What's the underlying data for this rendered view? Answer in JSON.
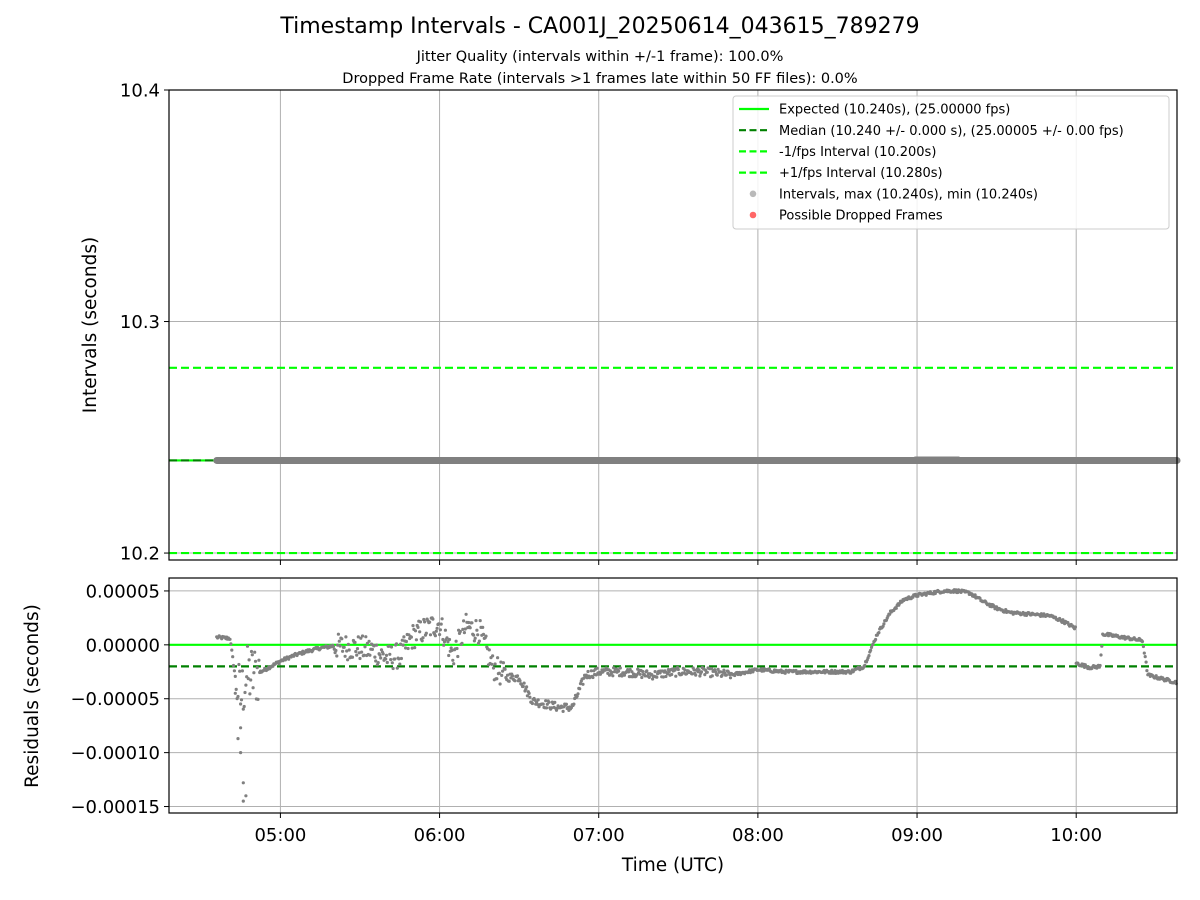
{
  "figure": {
    "title": "Timestamp Intervals - CA001J_20250614_043615_789279",
    "subtitle_1": "Jitter Quality (intervals within +/-1 frame): 100.0%",
    "subtitle_2": "Dropped Frame Rate (intervals >1 frames late within 50 FF files): 0.0%"
  },
  "colors": {
    "expected": "#00ff00",
    "median": "#008000",
    "interval_lines": "#00ff00",
    "points": "#808080",
    "dropped": "#ff0000",
    "grid": "#b0b0b0"
  },
  "chart_data": [
    {
      "type": "scatter",
      "panel": "intervals",
      "xlabel": "",
      "ylabel": "Intervals (seconds)",
      "x_range": [
        "04:18",
        "10:38"
      ],
      "ylim": [
        10.197,
        10.4
      ],
      "y_ticks": [
        "10.2",
        "10.3",
        "10.4"
      ],
      "grid": true,
      "legend_position": "top-right",
      "legend": [
        {
          "label": "Expected (10.240s), (25.00000 fps)",
          "style": "solid-line",
          "color": "#00ff00"
        },
        {
          "label": "Median (10.240 +/- 0.000 s), (25.00005 +/- 0.00 fps)",
          "style": "dashed-line",
          "color": "#008000"
        },
        {
          "label": "-1/fps Interval (10.200s)",
          "style": "dashed-line",
          "color": "#00ff00"
        },
        {
          "label": "+1/fps Interval (10.280s)",
          "style": "dashed-line",
          "color": "#00ff00"
        },
        {
          "label": "Intervals, max (10.240s), min (10.240s)",
          "style": "marker",
          "color": "#808080"
        },
        {
          "label": "Possible Dropped Frames",
          "style": "marker",
          "color": "#ff0000"
        }
      ],
      "reference_lines": [
        {
          "name": "expected",
          "y": 10.24,
          "style": "solid"
        },
        {
          "name": "median",
          "y": 10.24,
          "style": "dashed"
        },
        {
          "name": "minus_1_fps",
          "y": 10.2,
          "style": "dashed"
        },
        {
          "name": "plus_1_fps",
          "y": 10.28,
          "style": "dashed"
        }
      ],
      "series": [
        {
          "values_note": "intervals",
          "x_start": "04:36",
          "x_end": "10:38",
          "y": 10.24
        }
      ],
      "dropped_frames": []
    },
    {
      "type": "scatter",
      "panel": "residuals",
      "xlabel": "Time (UTC)",
      "ylabel": "Residuals (seconds)",
      "x_range": [
        "04:18",
        "10:38"
      ],
      "x_ticks": [
        "05:00",
        "06:00",
        "07:00",
        "08:00",
        "09:00",
        "10:00"
      ],
      "ylim": [
        -0.000156,
        6.2e-05
      ],
      "y_ticks": [
        "0.00005",
        "0.00000",
        "−0.00005",
        "−0.00010",
        "−0.00015"
      ],
      "grid": true,
      "reference_lines": [
        {
          "name": "expected",
          "y": 0.0,
          "style": "solid"
        },
        {
          "name": "median",
          "y": -2e-05,
          "style": "dashed"
        }
      ],
      "residual_trend": [
        [
          "04:36",
          7e-06
        ],
        [
          "04:41",
          6e-06
        ],
        [
          "04:43",
          -3e-05
        ],
        [
          "04:45",
          -5e-05
        ],
        [
          "04:47",
          -3e-05
        ],
        [
          "04:50",
          -2.8e-05
        ],
        [
          "04:55",
          -2.2e-05
        ],
        [
          "05:00",
          -1.5e-05
        ],
        [
          "05:05",
          -1e-05
        ],
        [
          "05:10",
          -6e-06
        ],
        [
          "05:15",
          -3e-06
        ],
        [
          "05:20",
          -1e-06
        ],
        [
          "05:25",
          -2e-06
        ],
        [
          "05:30",
          -3e-06
        ],
        [
          "05:35",
          -5e-06
        ],
        [
          "05:40",
          -1.2e-05
        ],
        [
          "05:45",
          -1e-05
        ],
        [
          "05:50",
          8e-06
        ],
        [
          "05:55",
          1.5e-05
        ],
        [
          "06:00",
          2e-05
        ],
        [
          "06:05",
          -1e-05
        ],
        [
          "06:10",
          1.7e-05
        ],
        [
          "06:15",
          1.3e-05
        ],
        [
          "06:20",
          -2e-05
        ],
        [
          "06:25",
          -3e-05
        ],
        [
          "06:30",
          -3e-05
        ],
        [
          "06:35",
          -5.2e-05
        ],
        [
          "06:40",
          -5.5e-05
        ],
        [
          "06:45",
          -5.8e-05
        ],
        [
          "06:50",
          -5.8e-05
        ],
        [
          "06:55",
          -2.8e-05
        ],
        [
          "07:00",
          -2.5e-05
        ],
        [
          "07:10",
          -2.5e-05
        ],
        [
          "07:20",
          -2.8e-05
        ],
        [
          "07:30",
          -2.5e-05
        ],
        [
          "07:40",
          -2.5e-05
        ],
        [
          "07:50",
          -2.8e-05
        ],
        [
          "08:00",
          -2.3e-05
        ],
        [
          "08:10",
          -2.5e-05
        ],
        [
          "08:20",
          -2.5e-05
        ],
        [
          "08:30",
          -2.5e-05
        ],
        [
          "08:35",
          -2.5e-05
        ],
        [
          "08:40",
          -2e-05
        ],
        [
          "08:45",
          1e-05
        ],
        [
          "08:50",
          3e-05
        ],
        [
          "08:55",
          4.2e-05
        ],
        [
          "09:00",
          4.6e-05
        ],
        [
          "09:05",
          4.8e-05
        ],
        [
          "09:10",
          5e-05
        ],
        [
          "09:15",
          5e-05
        ],
        [
          "09:20",
          4.8e-05
        ],
        [
          "09:25",
          4e-05
        ],
        [
          "09:30",
          3.4e-05
        ],
        [
          "09:35",
          3e-05
        ],
        [
          "09:40",
          2.9e-05
        ],
        [
          "09:45",
          2.8e-05
        ],
        [
          "09:50",
          2.7e-05
        ],
        [
          "09:55",
          2.2e-05
        ],
        [
          "10:00",
          1.5e-05
        ],
        [
          "10:00",
          -1.7e-05
        ],
        [
          "10:05",
          -2.1e-05
        ],
        [
          "10:09",
          -2e-05
        ],
        [
          "10:10",
          1e-05
        ],
        [
          "10:20",
          6e-06
        ],
        [
          "10:25",
          4e-06
        ],
        [
          "10:27",
          -2.8e-05
        ],
        [
          "10:38",
          -3.5e-05
        ]
      ]
    }
  ]
}
